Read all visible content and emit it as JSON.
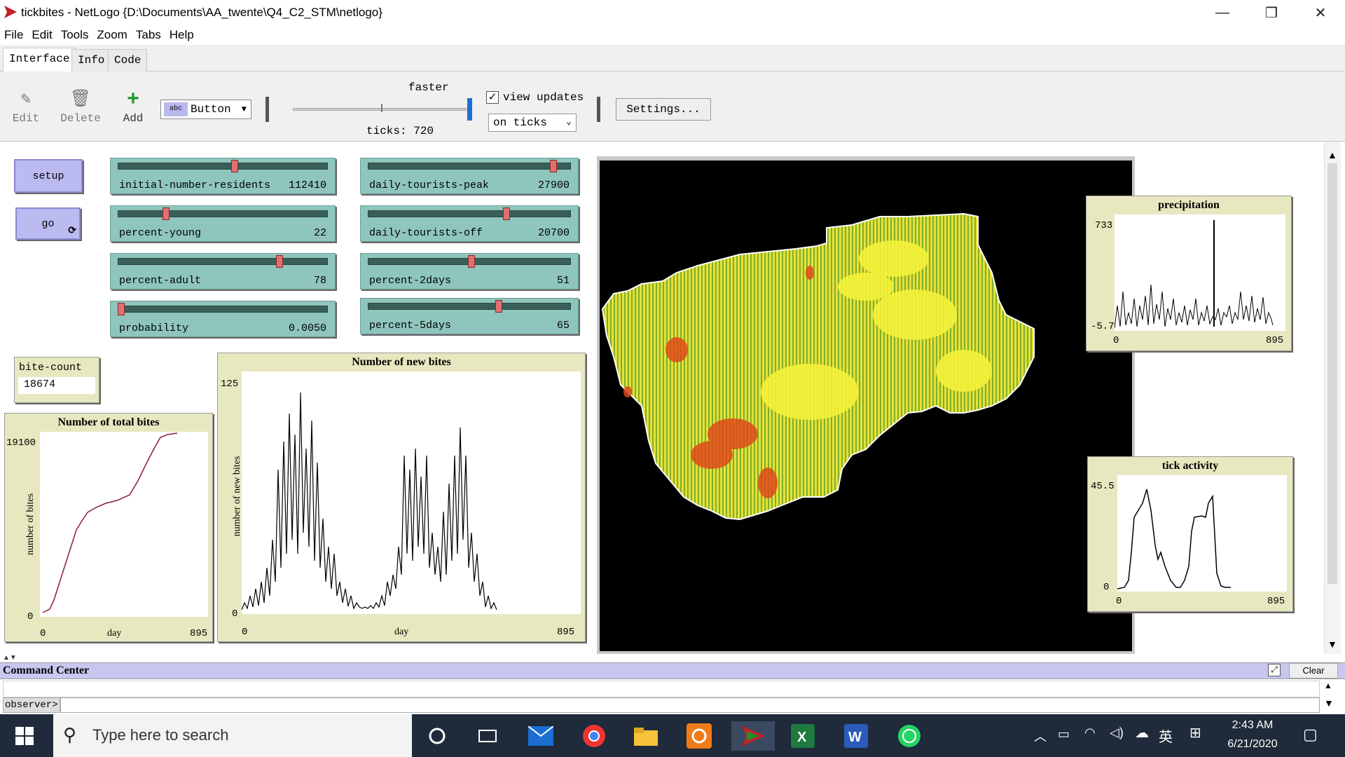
{
  "window": {
    "title": "tickbites - NetLogo {D:\\Documents\\AA_twente\\Q4_C2_STM\\netlogo}",
    "controls": [
      "—",
      "❐",
      "✕"
    ]
  },
  "menu": [
    "File",
    "Edit",
    "Tools",
    "Zoom",
    "Tabs",
    "Help"
  ],
  "tabs": [
    "Interface",
    "Info",
    "Code"
  ],
  "active_tab": "Interface",
  "toolbar": {
    "edit": "Edit",
    "delete": "Delete",
    "add": "Add",
    "widget_type": "Button",
    "speed_label": "faster",
    "ticks_label": "ticks: 720",
    "view_updates": "view updates",
    "view_updates_checked": true,
    "update_mode": "on ticks",
    "settings": "Settings..."
  },
  "buttons": {
    "setup": "setup",
    "go": "go"
  },
  "sliders": [
    {
      "name": "initial-number-residents",
      "value": "112410",
      "fraction": 0.56
    },
    {
      "name": "percent-young",
      "value": "22",
      "fraction": 0.22
    },
    {
      "name": "percent-adult",
      "value": "78",
      "fraction": 0.78
    },
    {
      "name": "probability",
      "value": "0.0050",
      "fraction": 0.0
    },
    {
      "name": "daily-tourists-peak",
      "value": "27900",
      "fraction": 0.93
    },
    {
      "name": "daily-tourists-off",
      "value": "20700",
      "fraction": 0.69
    },
    {
      "name": "percent-2days",
      "value": "51",
      "fraction": 0.51
    },
    {
      "name": "percent-5days",
      "value": "65",
      "fraction": 0.65
    }
  ],
  "monitor": {
    "label": "bite-count",
    "value": "18674"
  },
  "plots": {
    "total_bites": {
      "title": "Number of total bites",
      "ymax": "19100",
      "ymin": "0",
      "xmin": "0",
      "xmax": "895",
      "xlabel": "day",
      "ylabel": "number of bites"
    },
    "new_bites": {
      "title": "Number of new bites",
      "ymax": "125",
      "ymin": "0",
      "xmin": "0",
      "xmax": "895",
      "xlabel": "day",
      "ylabel": "number of new bites"
    },
    "precipitation": {
      "title": "precipitation",
      "ymax": "733",
      "ymin": "-5.7",
      "xmin": "0",
      "xmax": "895"
    },
    "tick_activity": {
      "title": "tick activity",
      "ymax": "45.5",
      "ymin": "0",
      "xmin": "0",
      "xmax": "895"
    }
  },
  "command_center": {
    "title": "Command Center",
    "clear": "Clear",
    "observer": "observer>"
  },
  "taskbar": {
    "search_placeholder": "Type here to search",
    "time": "2:43 AM",
    "date": "6/21/2020",
    "ime": "英"
  }
}
